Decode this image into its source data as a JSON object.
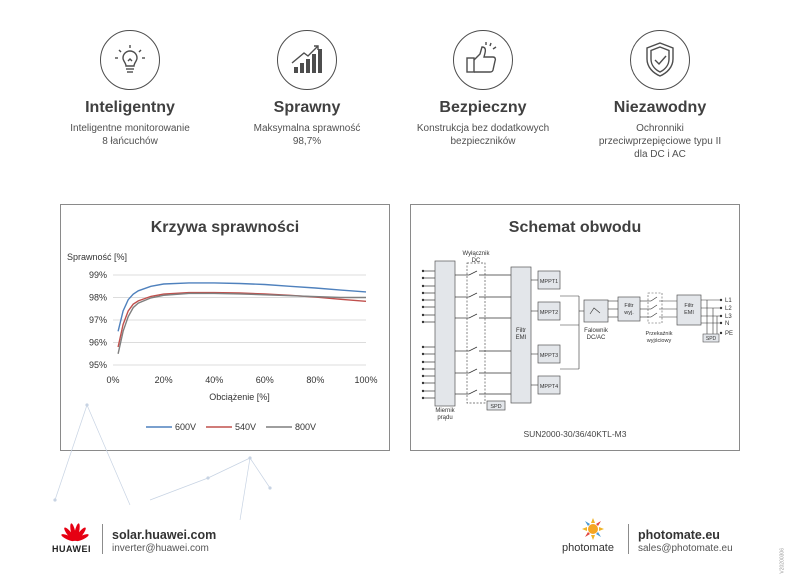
{
  "features": [
    {
      "title": "Inteligentny",
      "desc_line1": "Inteligentne monitorowanie",
      "desc_line2": "8 łańcuchów",
      "desc_line3": "",
      "icon": "lightbulb-icon"
    },
    {
      "title": "Sprawny",
      "desc_line1": "Maksymalna sprawność",
      "desc_line2": "98,7%",
      "desc_line3": "",
      "icon": "bar-growth-icon"
    },
    {
      "title": "Bezpieczny",
      "desc_line1": "Konstrukcja bez dodatkowych",
      "desc_line2": "bezpieczników",
      "desc_line3": "",
      "icon": "thumbs-up-icon"
    },
    {
      "title": "Niezawodny",
      "desc_line1": "Ochronniki",
      "desc_line2": "przeciwprzepięciowe typu II",
      "desc_line3": "dla DC i AC",
      "icon": "shield-check-icon"
    }
  ],
  "efficiency_panel": {
    "title": "Krzywa sprawności"
  },
  "chart_data": {
    "type": "line",
    "title": "Krzywa sprawności",
    "xlabel": "Obciążenie [%]",
    "ylabel": "Sprawność [%]",
    "xlim": [
      0,
      100
    ],
    "ylim": [
      95,
      99
    ],
    "x_ticks": [
      "0%",
      "20%",
      "40%",
      "60%",
      "80%",
      "100%"
    ],
    "y_ticks": [
      "99%",
      "98%",
      "97%",
      "96%",
      "95%"
    ],
    "grid": true,
    "legend": "bottom",
    "x": [
      2,
      4,
      6,
      8,
      10,
      15,
      20,
      30,
      40,
      50,
      60,
      70,
      80,
      90,
      100
    ],
    "series": [
      {
        "name": "600V",
        "color": "#4f81bd",
        "values": [
          96.5,
          97.4,
          97.9,
          98.15,
          98.3,
          98.5,
          98.6,
          98.65,
          98.65,
          98.62,
          98.58,
          98.5,
          98.42,
          98.33,
          98.25
        ]
      },
      {
        "name": "540V",
        "color": "#c0504d",
        "values": [
          95.8,
          96.8,
          97.4,
          97.7,
          97.85,
          98.05,
          98.15,
          98.22,
          98.22,
          98.2,
          98.16,
          98.1,
          98.02,
          97.92,
          97.83
        ]
      },
      {
        "name": "800V",
        "color": "#7f7f7f",
        "values": [
          95.5,
          96.5,
          97.15,
          97.55,
          97.75,
          97.98,
          98.1,
          98.18,
          98.18,
          98.16,
          98.12,
          98.08,
          98.04,
          98.0,
          98.0
        ]
      }
    ]
  },
  "circuit_panel": {
    "title": "Schemat obwodu",
    "breaker_label_line1": "Wyłącznik",
    "breaker_label_line2": "DC",
    "mppt_labels": [
      "MPPT1",
      "MPPT2",
      "MPPT3",
      "MPPT4"
    ],
    "dc_emi_line1": "Filtr",
    "dc_emi_line2": "EMI",
    "inverter_line1": "Falownik",
    "inverter_line2": "DC/AC",
    "out_filter_line1": "Filtr",
    "out_filter_line2": "wyj.",
    "relay_line1": "Przekaźnik",
    "relay_line2": "wyjściowy",
    "ac_emi_line1": "Filtr",
    "ac_emi_line2": "EMI",
    "spd_dc": "SPD",
    "spd_ac": "SPD",
    "terminals": [
      "L1",
      "L2",
      "L3",
      "N",
      "PE"
    ],
    "meter_line1": "Miernik",
    "meter_line2": "prądu",
    "model": "SUN2000-30/36/40KTL-M3"
  },
  "footer": {
    "huawei_brand": "HUAWEI",
    "huawei_site": "solar.huawei.com",
    "huawei_email": "inverter@huawei.com",
    "photomate_brand": "photomate",
    "photomate_site": "photomate.eu",
    "photomate_email": "sales@photomate.eu",
    "doc_code": "V20200306"
  },
  "colors": {
    "huawei_red": "#e60012",
    "line_gray": "#555555",
    "panel_border": "#8a8a8a"
  }
}
